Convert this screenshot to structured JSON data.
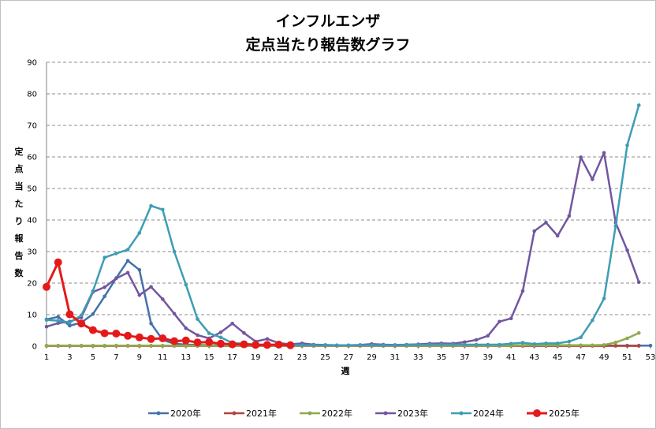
{
  "chart_data": {
    "type": "line",
    "title": [
      "インフルエンザ",
      "定点当たり報告数グラフ"
    ],
    "xlabel": "週",
    "ylabel": "定点当たり報告数",
    "ylim": [
      0,
      90
    ],
    "yticks": [
      0,
      10,
      20,
      30,
      40,
      50,
      60,
      70,
      80,
      90
    ],
    "xlim": [
      1,
      53
    ],
    "xticks": [
      1,
      3,
      5,
      7,
      9,
      11,
      13,
      15,
      17,
      19,
      21,
      23,
      25,
      27,
      29,
      31,
      33,
      35,
      37,
      39,
      41,
      43,
      45,
      47,
      49,
      51,
      53
    ],
    "grid": "horizontal-dashed",
    "legend": "bottom",
    "series": [
      {
        "name": "2020年",
        "color": "#4472a8",
        "x": [
          1,
          2,
          3,
          4,
          5,
          6,
          7,
          8,
          9,
          10,
          11,
          12,
          13,
          14,
          15,
          16,
          17,
          18,
          19,
          20,
          21,
          22,
          23,
          24,
          25,
          26,
          27,
          28,
          29,
          30,
          31,
          32,
          33,
          34,
          35,
          36,
          37,
          38,
          39,
          40,
          41,
          42,
          43,
          44,
          45,
          46,
          47,
          48,
          49,
          50,
          51,
          52,
          53
        ],
        "values": [
          8.5,
          9.3,
          6.5,
          7.5,
          10.2,
          15.8,
          21.6,
          27.1,
          24.2,
          7.2,
          2.0,
          0.8,
          0.5,
          0.4,
          0.3,
          0.3,
          0.3,
          0.2,
          0.2,
          0.2,
          0.2,
          0.2,
          0.2,
          0.2,
          0.2,
          0.2,
          0.2,
          0.2,
          0.2,
          0.2,
          0.2,
          0.2,
          0.2,
          0.2,
          0.2,
          0.2,
          0.2,
          0.2,
          0.2,
          0.2,
          0.2,
          0.2,
          0.2,
          0.2,
          0.2,
          0.2,
          0.2,
          0.2,
          0.2,
          0.2,
          0.2,
          0.2,
          0.2
        ]
      },
      {
        "name": "2021年",
        "color": "#b0463f",
        "x": [
          1,
          2,
          3,
          4,
          5,
          6,
          7,
          8,
          9,
          10,
          11,
          12,
          13,
          14,
          15,
          16,
          17,
          18,
          19,
          20,
          21,
          22,
          23,
          24,
          25,
          26,
          27,
          28,
          29,
          30,
          31,
          32,
          33,
          34,
          35,
          36,
          37,
          38,
          39,
          40,
          41,
          42,
          43,
          44,
          45,
          46,
          47,
          48,
          49,
          50,
          51,
          52
        ],
        "values": [
          0.1,
          0.1,
          0.1,
          0.1,
          0.1,
          0.1,
          0.1,
          0.1,
          0.1,
          0.1,
          0.1,
          0.1,
          0.1,
          0.1,
          0.1,
          0.1,
          0.1,
          0.1,
          0.1,
          0.1,
          0.1,
          0.1,
          0.1,
          0.1,
          0.1,
          0.1,
          0.1,
          0.1,
          0.1,
          0.1,
          0.1,
          0.1,
          0.1,
          0.1,
          0.1,
          0.1,
          0.1,
          0.1,
          0.1,
          0.1,
          0.1,
          0.1,
          0.1,
          0.1,
          0.1,
          0.1,
          0.1,
          0.1,
          0.1,
          0.1,
          0.1,
          0.1
        ]
      },
      {
        "name": "2022年",
        "color": "#8faa4a",
        "x": [
          1,
          2,
          3,
          4,
          5,
          6,
          7,
          8,
          9,
          10,
          11,
          12,
          13,
          14,
          15,
          16,
          17,
          18,
          19,
          20,
          21,
          22,
          23,
          24,
          25,
          26,
          27,
          28,
          29,
          30,
          31,
          32,
          33,
          34,
          35,
          36,
          37,
          38,
          39,
          40,
          41,
          42,
          43,
          44,
          45,
          46,
          47,
          48,
          49,
          50,
          51,
          52
        ],
        "values": [
          0.2,
          0.2,
          0.2,
          0.2,
          0.2,
          0.2,
          0.2,
          0.2,
          0.2,
          0.2,
          0.2,
          0.2,
          0.2,
          0.2,
          0.2,
          0.2,
          0.2,
          0.2,
          0.2,
          0.2,
          0.2,
          0.2,
          0.2,
          0.2,
          0.2,
          0.2,
          0.2,
          0.2,
          0.2,
          0.2,
          0.2,
          0.2,
          0.2,
          0.2,
          0.2,
          0.2,
          0.2,
          0.2,
          0.2,
          0.2,
          0.2,
          0.3,
          0.3,
          0.3,
          0.3,
          0.3,
          0.3,
          0.3,
          0.4,
          1.2,
          2.5,
          4.2
        ]
      },
      {
        "name": "2023年",
        "color": "#7256a0",
        "x": [
          1,
          2,
          3,
          4,
          5,
          6,
          7,
          8,
          9,
          10,
          11,
          12,
          13,
          14,
          15,
          16,
          17,
          18,
          19,
          20,
          21,
          22,
          23,
          24,
          25,
          26,
          27,
          28,
          29,
          30,
          31,
          32,
          33,
          34,
          35,
          36,
          37,
          38,
          39,
          40,
          41,
          42,
          43,
          44,
          45,
          46,
          47,
          48,
          49,
          50,
          51,
          52
        ],
        "values": [
          6.2,
          7.3,
          7.8,
          9.1,
          17.2,
          18.7,
          21.5,
          23.3,
          16.2,
          18.8,
          14.9,
          10.3,
          5.7,
          3.5,
          2.5,
          4.4,
          7.2,
          4.2,
          1.5,
          2.3,
          1.0,
          0.6,
          0.9,
          0.5,
          0.4,
          0.3,
          0.3,
          0.4,
          0.7,
          0.5,
          0.4,
          0.5,
          0.6,
          0.8,
          0.9,
          0.8,
          1.3,
          2.0,
          3.3,
          7.8,
          8.8,
          17.5,
          36.5,
          39.2,
          35.0,
          41.3,
          59.9,
          52.9,
          61.3,
          39.2,
          30.4,
          20.3
        ]
      },
      {
        "name": "2024年",
        "color": "#3d9db5",
        "x": [
          1,
          2,
          3,
          4,
          5,
          6,
          7,
          8,
          9,
          10,
          11,
          12,
          13,
          14,
          15,
          16,
          17,
          18,
          19,
          20,
          21,
          22,
          23,
          24,
          25,
          26,
          27,
          28,
          29,
          30,
          31,
          32,
          33,
          34,
          35,
          36,
          37,
          38,
          39,
          40,
          41,
          42,
          43,
          44,
          45,
          46,
          47,
          48,
          49,
          50,
          51,
          52
        ],
        "values": [
          8.3,
          8.1,
          7.5,
          9.8,
          17.5,
          28.1,
          29.4,
          30.6,
          35.9,
          44.5,
          43.3,
          30.0,
          19.5,
          8.6,
          4.1,
          2.8,
          1.0,
          0.8,
          0.5,
          0.5,
          0.4,
          0.3,
          0.3,
          0.3,
          0.3,
          0.3,
          0.3,
          0.3,
          0.3,
          0.3,
          0.3,
          0.4,
          0.4,
          0.5,
          0.5,
          0.5,
          0.5,
          0.5,
          0.5,
          0.5,
          0.8,
          1.1,
          0.7,
          0.9,
          0.9,
          1.5,
          2.8,
          8.2,
          15.1,
          38.1,
          63.7,
          76.4
        ]
      },
      {
        "name": "2025年",
        "color": "#e41a1a",
        "x": [
          1,
          2,
          3,
          4,
          5,
          6,
          7,
          8,
          9,
          10,
          11,
          12,
          13,
          14,
          15,
          16,
          17,
          18,
          19,
          20,
          21,
          22
        ],
        "values": [
          18.8,
          26.6,
          10.1,
          7.2,
          5.1,
          4.1,
          4.0,
          3.3,
          2.8,
          2.3,
          2.5,
          1.6,
          1.8,
          1.2,
          1.3,
          0.8,
          0.6,
          0.6,
          0.4,
          0.4,
          0.5,
          0.3
        ]
      }
    ]
  }
}
